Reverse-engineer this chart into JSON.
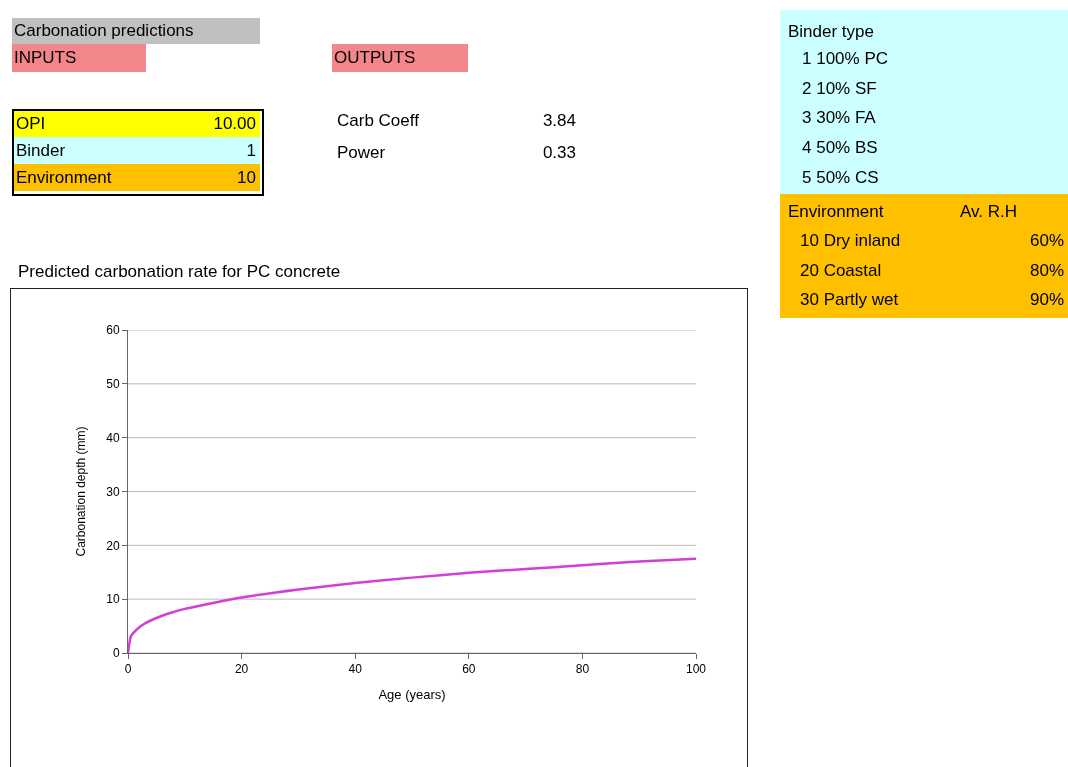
{
  "chart_data": [
    {
      "type": "other",
      "annotations": [
        "Carbonation predictions",
        "INPUTS",
        "OUTPUTS",
        "OPI",
        "10.00",
        "Binder",
        "1",
        "Environment",
        "10",
        "Carb Coeff",
        "3.84",
        "Power",
        "0.33",
        "Binder type",
        "1 100% PC",
        "2 10% SF",
        "3 30% FA",
        "4 50% BS",
        "5 50% CS",
        "Environment",
        "Av. R.H",
        "10 Dry inland",
        "60%",
        "20 Coastal",
        "80%",
        "30 Partly wet",
        "90%"
      ]
    },
    {
      "type": "line",
      "title": "Predicted carbonation rate for  PC concrete",
      "xlabel": "Age (years)",
      "ylabel": "Carbonation depth (mm)",
      "x": [
        0,
        0.5,
        1,
        2,
        3,
        5,
        7,
        10,
        15,
        20,
        30,
        40,
        50,
        60,
        70,
        80,
        90,
        100
      ],
      "values": [
        0,
        3.1,
        3.8,
        4.8,
        5.5,
        6.5,
        7.3,
        8.2,
        9.3,
        10.3,
        11.8,
        13.0,
        14.0,
        14.9,
        15.6,
        16.3,
        17.0,
        17.5
      ],
      "color": "#d23fd6",
      "xlim": [
        0,
        100
      ],
      "ylim": [
        0,
        60
      ],
      "xticks": [
        0,
        20,
        40,
        60,
        80,
        100
      ],
      "yticks": [
        0,
        10,
        20,
        30,
        40,
        50,
        60
      ],
      "grid": "y",
      "marker": "none",
      "line_style": "solid"
    }
  ]
}
